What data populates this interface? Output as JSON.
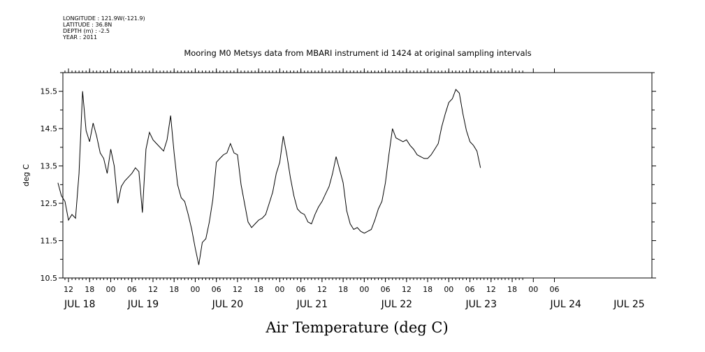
{
  "header": {
    "longitude": "LONGITUDE : 121.9W(-121.9)",
    "latitude": "LATITUDE : 36.8N",
    "depth": "DEPTH (m) : -2.5",
    "year": "YEAR : 2011"
  },
  "chart_data": {
    "type": "line",
    "title": "Mooring M0 Metsys data from MBARI instrument id 1424 at original sampling intervals",
    "xlabel": "Air Temperature (deg C)",
    "ylabel": "deg C",
    "ylim": [
      10.5,
      16.0
    ],
    "yticks": [
      "10.5",
      "11.5",
      "12.5",
      "13.5",
      "14.5",
      "15.5"
    ],
    "xlim_hours": [
      -15,
      117
    ],
    "x_hour_ticks": [
      {
        "hour": -12,
        "label": "12"
      },
      {
        "hour": -6,
        "label": "18"
      },
      {
        "hour": 0,
        "label": "00"
      },
      {
        "hour": 6,
        "label": "06"
      },
      {
        "hour": 12,
        "label": "12"
      },
      {
        "hour": 18,
        "label": "18"
      },
      {
        "hour": 24,
        "label": "00"
      },
      {
        "hour": 30,
        "label": "06"
      },
      {
        "hour": 36,
        "label": "12"
      },
      {
        "hour": 42,
        "label": "18"
      },
      {
        "hour": 48,
        "label": "00"
      },
      {
        "hour": 54,
        "label": "06"
      },
      {
        "hour": 60,
        "label": "12"
      },
      {
        "hour": 66,
        "label": "18"
      },
      {
        "hour": 72,
        "label": "00"
      },
      {
        "hour": 78,
        "label": "06"
      },
      {
        "hour": 84,
        "label": "12"
      },
      {
        "hour": 90,
        "label": "18"
      },
      {
        "hour": 96,
        "label": "00"
      },
      {
        "hour": 102,
        "label": "06"
      },
      {
        "hour": 108,
        "label": "12"
      },
      {
        "hour": 114,
        "label": "18"
      },
      {
        "hour": 120,
        "label": "00"
      },
      {
        "hour": 126,
        "label": "06"
      }
    ],
    "day_labels": [
      {
        "hour": -12,
        "label": "JUL 18"
      },
      {
        "hour": 6,
        "label": "JUL 19"
      },
      {
        "hour": 30,
        "label": "JUL 20"
      },
      {
        "hour": 54,
        "label": "JUL 21"
      },
      {
        "hour": 78,
        "label": "JUL 22"
      },
      {
        "hour": 102,
        "label": "JUL 23"
      },
      {
        "hour": 126,
        "label": "JUL 24"
      },
      {
        "hour": 144,
        "label": "JUL 25"
      }
    ],
    "series": [
      {
        "x_start_hour": -15,
        "x_step_hours": 1,
        "values": [
          13.05,
          12.7,
          12.55,
          12.05,
          12.2,
          12.1,
          13.3,
          15.5,
          14.45,
          14.15,
          14.65,
          14.3,
          13.85,
          13.7,
          13.3,
          13.95,
          13.5,
          12.5,
          12.95,
          13.1,
          13.2,
          13.3,
          13.45,
          13.35,
          12.25,
          13.95,
          14.4,
          14.2,
          14.1,
          14.0,
          13.9,
          14.2,
          14.85,
          13.85,
          13.0,
          12.65,
          12.55,
          12.2,
          11.8,
          11.3,
          10.85,
          11.45,
          11.55,
          12.0,
          12.6,
          13.6,
          13.7,
          13.8,
          13.85,
          14.1,
          13.85,
          13.8,
          13.0,
          12.5,
          12.0,
          11.85,
          11.95,
          12.05,
          12.1,
          12.2,
          12.5,
          12.8,
          13.3,
          13.6,
          14.3,
          13.8,
          13.2,
          12.7,
          12.35,
          12.25,
          12.2,
          12.0,
          11.95,
          12.2,
          12.4,
          12.55,
          12.75,
          12.95,
          13.3,
          13.75,
          13.4,
          13.05,
          12.3,
          11.95,
          11.8,
          11.85,
          11.75,
          11.7,
          11.75,
          11.8,
          12.05,
          12.35,
          12.55,
          13.05,
          13.8,
          14.5,
          14.25,
          14.2,
          14.15,
          14.2,
          14.05,
          13.95,
          13.8,
          13.75,
          13.7,
          13.7,
          13.8,
          13.95,
          14.1,
          14.55,
          14.9,
          15.2,
          15.3,
          15.55,
          15.45,
          14.9,
          14.45,
          14.15,
          14.05,
          13.9,
          13.45
        ]
      }
    ]
  }
}
